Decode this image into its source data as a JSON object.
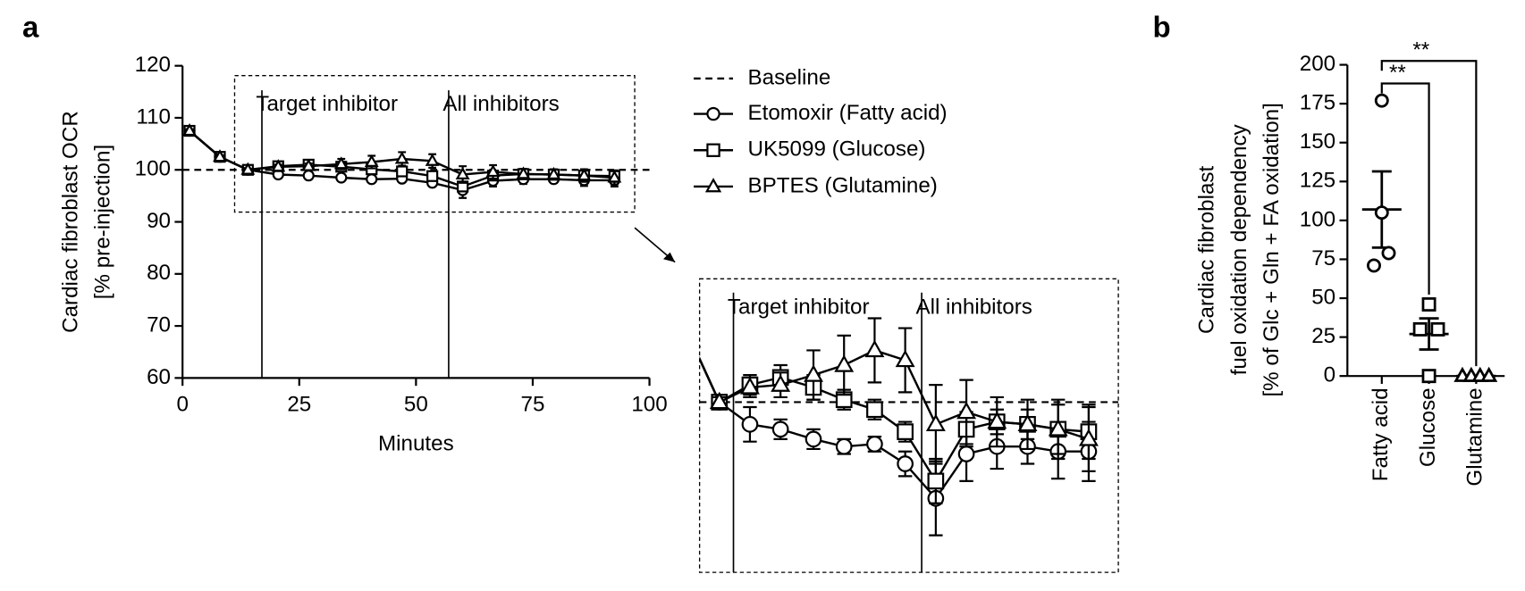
{
  "chart_data": [
    {
      "type": "line",
      "panel_label": "a",
      "y_label": [
        "Cardiac fibroblast OCR",
        "[% pre-injection]"
      ],
      "x_label": "Minutes",
      "xlim": [
        0,
        100
      ],
      "xticks": [
        0,
        25,
        50,
        75,
        100
      ],
      "ylim": [
        60,
        120
      ],
      "yticks": [
        60,
        70,
        80,
        90,
        100,
        110,
        120
      ],
      "x": [
        1.5,
        8,
        14,
        20.5,
        27,
        34,
        40.5,
        47,
        53.5,
        60,
        66.5,
        73,
        79.5,
        86,
        92.5
      ],
      "baseline": {
        "name": "Baseline",
        "value": 100
      },
      "injections": [
        {
          "x": 17,
          "label": "Target inhibitor"
        },
        {
          "x": 57,
          "label": "All inhibitors"
        }
      ],
      "series": [
        {
          "name": "Etomoxir (Fatty acid)",
          "marker": "circle",
          "color": "#000000",
          "values": [
            107.5,
            102.5,
            100,
            99.1,
            98.9,
            98.5,
            98.2,
            98.3,
            97.5,
            96.1,
            97.9,
            98.2,
            98.2,
            98.0,
            98.0
          ],
          "errors": [
            0.3,
            0.3,
            0.2,
            0.7,
            0.4,
            0.4,
            0.3,
            0.3,
            0.5,
            1.5,
            1.1,
            0.9,
            0.7,
            1.1,
            1.2
          ]
        },
        {
          "name": "UK5099 (Glucose)",
          "marker": "square",
          "color": "#000000",
          "values": [
            107.5,
            102.5,
            100,
            100.7,
            101.0,
            100.6,
            100.1,
            99.7,
            98.8,
            96.8,
            98.9,
            99.2,
            99.1,
            98.9,
            98.8
          ],
          "errors": [
            0.3,
            0.3,
            0.2,
            0.4,
            0.5,
            0.5,
            0.4,
            0.4,
            0.4,
            0.9,
            0.7,
            0.5,
            0.6,
            1.0,
            1.1
          ]
        },
        {
          "name": "BPTES (Glutamine)",
          "marker": "triangle",
          "color": "#000000",
          "values": [
            107.5,
            102.5,
            100,
            100.6,
            100.7,
            101.1,
            101.5,
            102.1,
            101.7,
            99.1,
            99.6,
            99.2,
            99.1,
            98.9,
            98.5
          ],
          "errors": [
            0.3,
            0.3,
            0.2,
            0.4,
            0.5,
            1.0,
            1.2,
            1.3,
            1.3,
            1.6,
            1.3,
            1.0,
            1.0,
            1.2,
            1.3
          ]
        }
      ],
      "inset_xlim": [
        9.8,
        98.8
      ],
      "inset_ylim": [
        93.1,
        105
      ]
    },
    {
      "type": "scatter",
      "panel_label": "b",
      "y_label": [
        "Cardiac fibroblast",
        "fuel  oxidation dependency",
        "[% of Glc + Gln + FA oxidation]"
      ],
      "categories": [
        "Fatty acid",
        "Glucose",
        "Glutamine"
      ],
      "markers": [
        "circle",
        "square",
        "triangle"
      ],
      "points": [
        [
          177,
          105,
          71,
          79
        ],
        [
          46,
          30,
          30,
          0
        ],
        [
          0,
          0,
          0,
          0
        ]
      ],
      "means": [
        107,
        27,
        0
      ],
      "sem": [
        24.5,
        10,
        0
      ],
      "ylim": [
        0,
        200
      ],
      "yticks": [
        0,
        25,
        50,
        75,
        100,
        125,
        150,
        175,
        200
      ],
      "comparisons": [
        {
          "from": 0,
          "to": 1,
          "y": 188,
          "label": "**"
        },
        {
          "from": 0,
          "to": 2,
          "y": 202.5,
          "label": "**"
        }
      ]
    }
  ]
}
